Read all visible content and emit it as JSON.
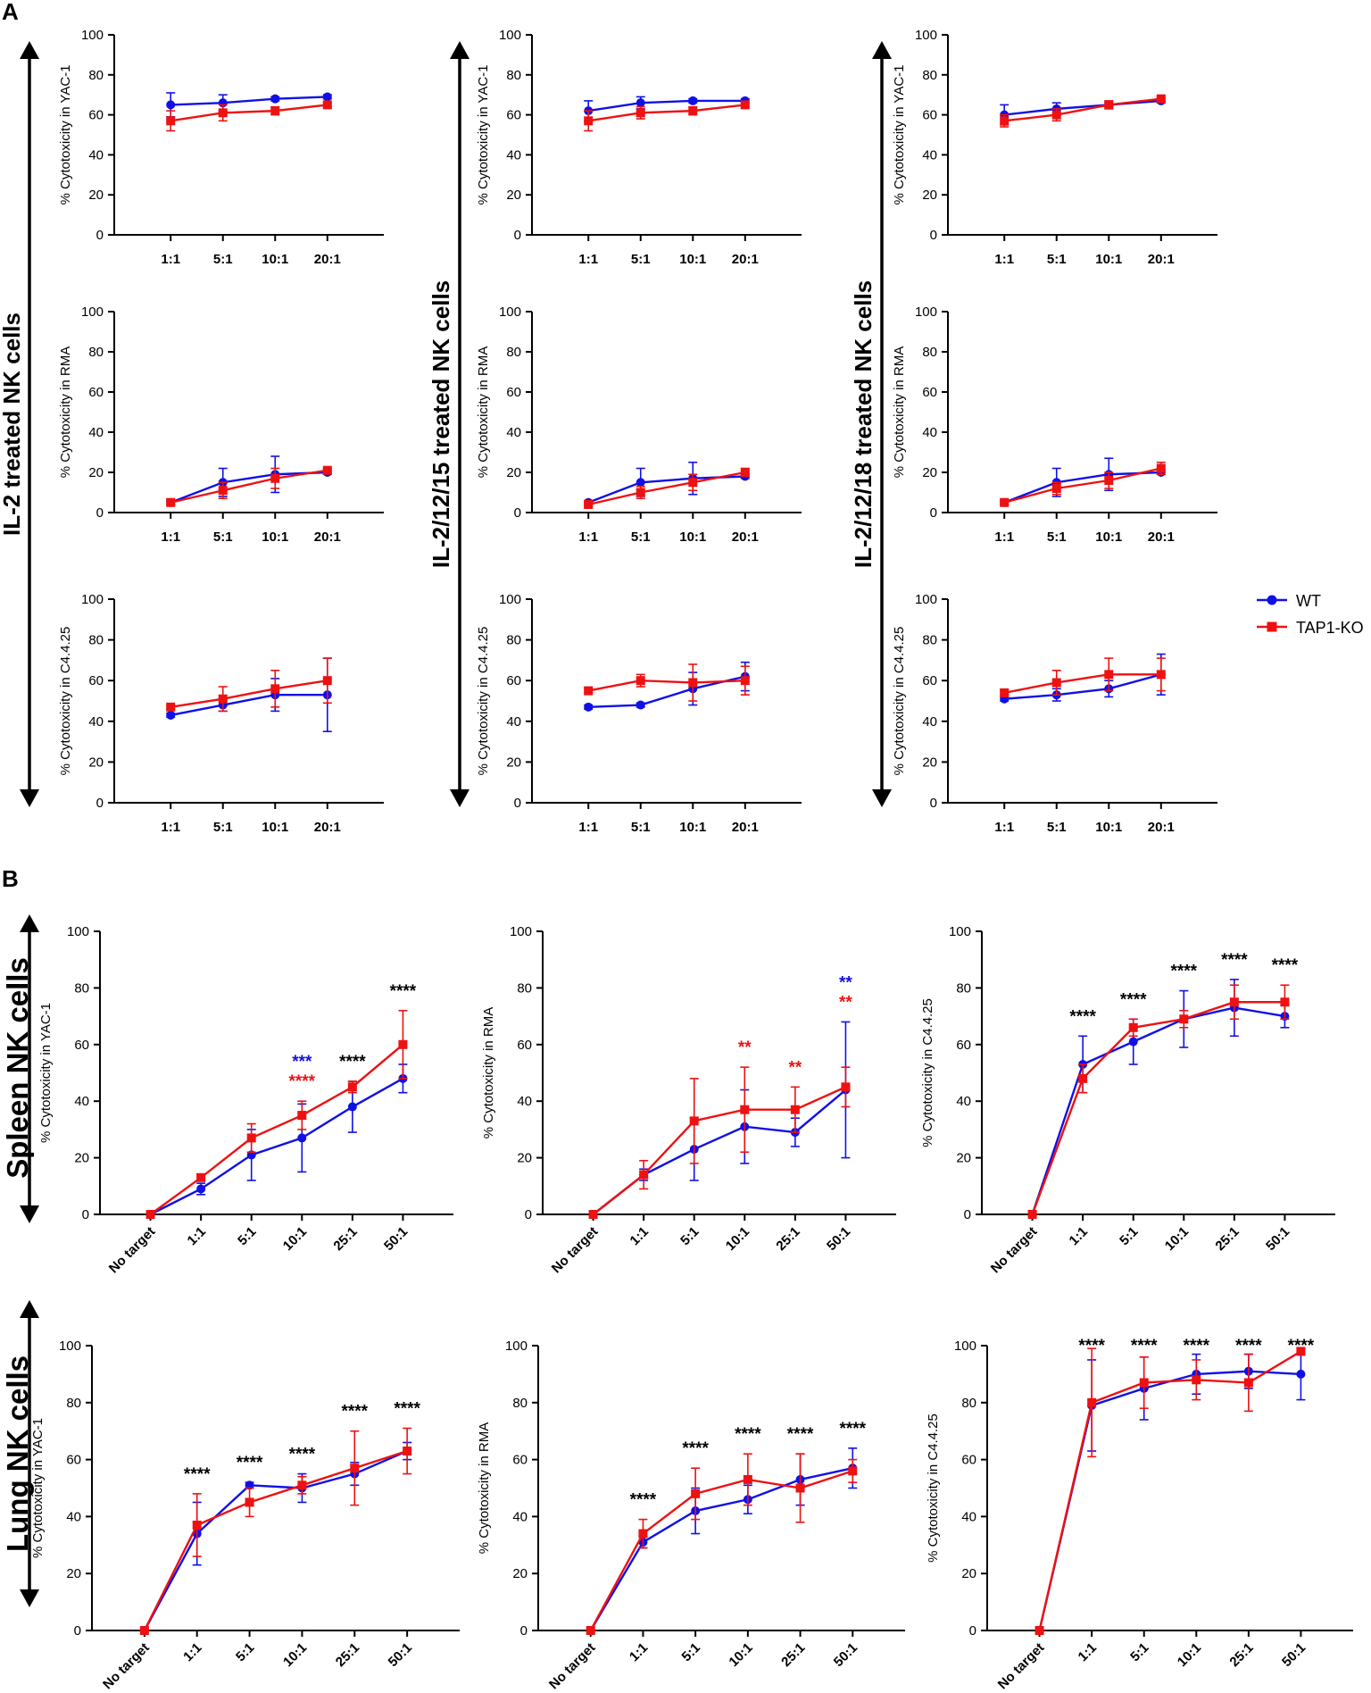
{
  "panels": {
    "a": "A",
    "b": "B"
  },
  "row_labels": {
    "il2": "IL-2 treated NK cells",
    "il21215": "IL-2/12/15 treated NK cells",
    "il21218": "IL-2/12/18 treated NK cells",
    "spleen": "Spleen NK cells",
    "lung": "Lung NK cells"
  },
  "legend": {
    "wt": "WT",
    "ko": "TAP1-KO"
  },
  "colors": {
    "wt": "#1010e6",
    "ko": "#ee1111",
    "axis": "#000000",
    "star_black": "#000000"
  },
  "chart_data": [
    {
      "id": "a11",
      "type": "line",
      "ylabel": "% Cytotoxicity in YAC-1",
      "categories": [
        "1:1",
        "5:1",
        "10:1",
        "20:1"
      ],
      "ylim": [
        0,
        100
      ],
      "yticks": [
        0,
        20,
        40,
        60,
        80,
        100
      ],
      "series": [
        {
          "name": "WT",
          "values": [
            65,
            66,
            68,
            69
          ],
          "err": [
            6,
            4,
            1,
            1
          ]
        },
        {
          "name": "TAP1-KO",
          "values": [
            57,
            61,
            62,
            65
          ],
          "err": [
            5,
            4,
            2,
            1
          ]
        }
      ],
      "annotations": []
    },
    {
      "id": "a12",
      "type": "line",
      "ylabel": "% Cytotoxicity in YAC-1",
      "categories": [
        "1:1",
        "5:1",
        "10:1",
        "20:1"
      ],
      "ylim": [
        0,
        100
      ],
      "yticks": [
        0,
        20,
        40,
        60,
        80,
        100
      ],
      "series": [
        {
          "name": "WT",
          "values": [
            62,
            66,
            67,
            67
          ],
          "err": [
            5,
            3,
            1,
            1
          ]
        },
        {
          "name": "TAP1-KO",
          "values": [
            57,
            61,
            62,
            65
          ],
          "err": [
            5,
            3,
            2,
            1
          ]
        }
      ],
      "annotations": []
    },
    {
      "id": "a13",
      "type": "line",
      "ylabel": "% Cytotoxicity in YAC-1",
      "categories": [
        "1:1",
        "5:1",
        "10:1",
        "20:1"
      ],
      "ylim": [
        0,
        100
      ],
      "yticks": [
        0,
        20,
        40,
        60,
        80,
        100
      ],
      "series": [
        {
          "name": "WT",
          "values": [
            60,
            63,
            65,
            67
          ],
          "err": [
            5,
            3,
            1,
            1
          ]
        },
        {
          "name": "TAP1-KO",
          "values": [
            57,
            60,
            65,
            68
          ],
          "err": [
            3,
            3,
            2,
            1
          ]
        }
      ],
      "annotations": []
    },
    {
      "id": "a21",
      "type": "line",
      "ylabel": "% Cytotoxicity in RMA",
      "categories": [
        "1:1",
        "5:1",
        "10:1",
        "20:1"
      ],
      "ylim": [
        0,
        100
      ],
      "yticks": [
        0,
        20,
        40,
        60,
        80,
        100
      ],
      "series": [
        {
          "name": "WT",
          "values": [
            5,
            15,
            19,
            20
          ],
          "err": [
            1,
            7,
            9,
            1
          ]
        },
        {
          "name": "TAP1-KO",
          "values": [
            5,
            11,
            17,
            21
          ],
          "err": [
            1,
            4,
            5,
            1
          ]
        }
      ],
      "annotations": []
    },
    {
      "id": "a22",
      "type": "line",
      "ylabel": "% Cytotoxicity in RMA",
      "categories": [
        "1:1",
        "5:1",
        "10:1",
        "20:1"
      ],
      "ylim": [
        0,
        100
      ],
      "yticks": [
        0,
        20,
        40,
        60,
        80,
        100
      ],
      "series": [
        {
          "name": "WT",
          "values": [
            5,
            15,
            17,
            18
          ],
          "err": [
            1,
            7,
            8,
            1
          ]
        },
        {
          "name": "TAP1-KO",
          "values": [
            4,
            10,
            15,
            20
          ],
          "err": [
            1,
            3,
            4,
            2
          ]
        }
      ],
      "annotations": []
    },
    {
      "id": "a23",
      "type": "line",
      "ylabel": "% Cytotoxicity in RMA",
      "categories": [
        "1:1",
        "5:1",
        "10:1",
        "20:1"
      ],
      "ylim": [
        0,
        100
      ],
      "yticks": [
        0,
        20,
        40,
        60,
        80,
        100
      ],
      "series": [
        {
          "name": "WT",
          "values": [
            5,
            15,
            19,
            20
          ],
          "err": [
            1,
            7,
            8,
            1
          ]
        },
        {
          "name": "TAP1-KO",
          "values": [
            5,
            12,
            16,
            22
          ],
          "err": [
            1,
            3,
            4,
            3
          ]
        }
      ],
      "annotations": []
    },
    {
      "id": "a31",
      "type": "line",
      "ylabel": "% Cytotoxicity in C4.4.25",
      "categories": [
        "1:1",
        "5:1",
        "10:1",
        "20:1"
      ],
      "ylim": [
        0,
        100
      ],
      "yticks": [
        0,
        20,
        40,
        60,
        80,
        100
      ],
      "series": [
        {
          "name": "WT",
          "values": [
            43,
            48,
            53,
            53
          ],
          "err": [
            1,
            3,
            8,
            18
          ]
        },
        {
          "name": "TAP1-KO",
          "values": [
            47,
            51,
            56,
            60
          ],
          "err": [
            1,
            6,
            9,
            11
          ]
        }
      ],
      "annotations": []
    },
    {
      "id": "a32",
      "type": "line",
      "ylabel": "% Cytotoxicity in C4.4.25",
      "categories": [
        "1:1",
        "5:1",
        "10:1",
        "20:1"
      ],
      "ylim": [
        0,
        100
      ],
      "yticks": [
        0,
        20,
        40,
        60,
        80,
        100
      ],
      "series": [
        {
          "name": "WT",
          "values": [
            47,
            48,
            56,
            62
          ],
          "err": [
            1,
            1,
            8,
            7
          ]
        },
        {
          "name": "TAP1-KO",
          "values": [
            55,
            60,
            59,
            60
          ],
          "err": [
            1,
            3,
            9,
            7
          ]
        }
      ],
      "annotations": []
    },
    {
      "id": "a33",
      "type": "line",
      "ylabel": "% Cytotoxicity in C4.4.25",
      "categories": [
        "1:1",
        "5:1",
        "10:1",
        "20:1"
      ],
      "ylim": [
        0,
        100
      ],
      "yticks": [
        0,
        20,
        40,
        60,
        80,
        100
      ],
      "series": [
        {
          "name": "WT",
          "values": [
            51,
            53,
            56,
            63
          ],
          "err": [
            1,
            3,
            4,
            10
          ]
        },
        {
          "name": "TAP1-KO",
          "values": [
            54,
            59,
            63,
            63
          ],
          "err": [
            1,
            6,
            8,
            8
          ]
        }
      ],
      "annotations": []
    },
    {
      "id": "b11",
      "type": "line",
      "ylabel": "% Cytotoxicity in YAC-1",
      "categories": [
        "No target",
        "1:1",
        "5:1",
        "10:1",
        "25:1",
        "50:1"
      ],
      "ylim": [
        0,
        100
      ],
      "yticks": [
        0,
        20,
        40,
        60,
        80,
        100
      ],
      "series": [
        {
          "name": "WT",
          "values": [
            0,
            9,
            21,
            27,
            38,
            48
          ],
          "err": [
            0,
            2,
            9,
            12,
            9,
            5
          ]
        },
        {
          "name": "TAP1-KO",
          "values": [
            0,
            13,
            27,
            35,
            45,
            60
          ],
          "err": [
            0,
            1,
            5,
            5,
            2,
            12
          ]
        }
      ],
      "annotations": [
        {
          "cat": 3,
          "lines": [
            {
              "text": "***",
              "color": "#1010e6"
            },
            {
              "text": "****",
              "color": "#ee1111"
            }
          ]
        },
        {
          "cat": 4,
          "lines": [
            {
              "text": "****",
              "color": "#000000"
            }
          ]
        },
        {
          "cat": 5,
          "lines": [
            {
              "text": "****",
              "color": "#000000"
            }
          ]
        }
      ]
    },
    {
      "id": "b12",
      "type": "line",
      "ylabel": "% Cytotoxicity in RMA",
      "categories": [
        "No target",
        "1:1",
        "5:1",
        "10:1",
        "25:1",
        "50:1"
      ],
      "ylim": [
        0,
        100
      ],
      "yticks": [
        0,
        20,
        40,
        60,
        80,
        100
      ],
      "series": [
        {
          "name": "WT",
          "values": [
            0,
            14,
            23,
            31,
            29,
            44
          ],
          "err": [
            0,
            2,
            11,
            13,
            5,
            24
          ]
        },
        {
          "name": "TAP1-KO",
          "values": [
            0,
            14,
            33,
            37,
            37,
            45
          ],
          "err": [
            0,
            5,
            15,
            15,
            8,
            7
          ]
        }
      ],
      "annotations": [
        {
          "cat": 3,
          "lines": [
            {
              "text": "**",
              "color": "#ee1111"
            }
          ]
        },
        {
          "cat": 4,
          "lines": [
            {
              "text": "**",
              "color": "#ee1111"
            }
          ]
        },
        {
          "cat": 5,
          "lines": [
            {
              "text": "**",
              "color": "#1010e6"
            },
            {
              "text": "**",
              "color": "#ee1111"
            }
          ]
        }
      ]
    },
    {
      "id": "b13",
      "type": "line",
      "ylabel": "% Cytotoxicity in C4.4.25",
      "categories": [
        "No target",
        "1:1",
        "5:1",
        "10:1",
        "25:1",
        "50:1"
      ],
      "ylim": [
        0,
        100
      ],
      "yticks": [
        0,
        20,
        40,
        60,
        80,
        100
      ],
      "series": [
        {
          "name": "WT",
          "values": [
            0,
            53,
            61,
            69,
            73,
            70
          ],
          "err": [
            0,
            10,
            8,
            10,
            10,
            4
          ]
        },
        {
          "name": "TAP1-KO",
          "values": [
            0,
            48,
            66,
            69,
            75,
            75
          ],
          "err": [
            0,
            5,
            3,
            3,
            6,
            6
          ]
        }
      ],
      "annotations": [
        {
          "cat": 1,
          "lines": [
            {
              "text": "****",
              "color": "#000000"
            }
          ]
        },
        {
          "cat": 2,
          "lines": [
            {
              "text": "****",
              "color": "#000000"
            }
          ]
        },
        {
          "cat": 3,
          "lines": [
            {
              "text": "****",
              "color": "#000000"
            }
          ]
        },
        {
          "cat": 4,
          "lines": [
            {
              "text": "****",
              "color": "#000000"
            }
          ]
        },
        {
          "cat": 5,
          "lines": [
            {
              "text": "****",
              "color": "#000000"
            }
          ]
        }
      ]
    },
    {
      "id": "b21",
      "type": "line",
      "ylabel": "% Cytotoxicity in YAC-1",
      "categories": [
        "No target",
        "1:1",
        "5:1",
        "10:1",
        "25:1",
        "50:1"
      ],
      "ylim": [
        0,
        100
      ],
      "yticks": [
        0,
        20,
        40,
        60,
        80,
        100
      ],
      "series": [
        {
          "name": "WT",
          "values": [
            0,
            34,
            51,
            50,
            55,
            63
          ],
          "err": [
            0,
            11,
            1,
            5,
            4,
            3
          ]
        },
        {
          "name": "TAP1-KO",
          "values": [
            0,
            37,
            45,
            51,
            57,
            63
          ],
          "err": [
            0,
            11,
            5,
            3,
            13,
            8
          ]
        }
      ],
      "annotations": [
        {
          "cat": 1,
          "lines": [
            {
              "text": "****",
              "color": "#000000"
            }
          ]
        },
        {
          "cat": 2,
          "lines": [
            {
              "text": "****",
              "color": "#000000"
            }
          ]
        },
        {
          "cat": 3,
          "lines": [
            {
              "text": "****",
              "color": "#000000"
            }
          ]
        },
        {
          "cat": 4,
          "lines": [
            {
              "text": "****",
              "color": "#000000"
            }
          ]
        },
        {
          "cat": 5,
          "lines": [
            {
              "text": "****",
              "color": "#000000"
            }
          ]
        }
      ]
    },
    {
      "id": "b22",
      "type": "line",
      "ylabel": "% Cytotoxicity in RMA",
      "categories": [
        "No target",
        "1:1",
        "5:1",
        "10:1",
        "25:1",
        "50:1"
      ],
      "ylim": [
        0,
        100
      ],
      "yticks": [
        0,
        20,
        40,
        60,
        80,
        100
      ],
      "series": [
        {
          "name": "WT",
          "values": [
            0,
            31,
            42,
            46,
            53,
            57
          ],
          "err": [
            0,
            2,
            8,
            5,
            9,
            7
          ]
        },
        {
          "name": "TAP1-KO",
          "values": [
            0,
            34,
            48,
            53,
            50,
            56
          ],
          "err": [
            0,
            5,
            9,
            9,
            12,
            4
          ]
        }
      ],
      "annotations": [
        {
          "cat": 1,
          "lines": [
            {
              "text": "****",
              "color": "#000000"
            }
          ]
        },
        {
          "cat": 2,
          "lines": [
            {
              "text": "****",
              "color": "#000000"
            }
          ]
        },
        {
          "cat": 3,
          "lines": [
            {
              "text": "****",
              "color": "#000000"
            }
          ]
        },
        {
          "cat": 4,
          "lines": [
            {
              "text": "****",
              "color": "#000000"
            }
          ]
        },
        {
          "cat": 5,
          "lines": [
            {
              "text": "****",
              "color": "#000000"
            }
          ]
        }
      ]
    },
    {
      "id": "b23",
      "type": "line",
      "ylabel": "% Cytotoxicity in C4.4.25",
      "categories": [
        "No target",
        "1:1",
        "5:1",
        "10:1",
        "25:1",
        "50:1"
      ],
      "ylim": [
        0,
        100
      ],
      "yticks": [
        0,
        20,
        40,
        60,
        80,
        100
      ],
      "series": [
        {
          "name": "WT",
          "values": [
            0,
            79,
            85,
            90,
            91,
            90
          ],
          "err": [
            0,
            16,
            11,
            7,
            6,
            9
          ]
        },
        {
          "name": "TAP1-KO",
          "values": [
            0,
            80,
            87,
            88,
            87,
            98
          ],
          "err": [
            0,
            19,
            9,
            7,
            10,
            1
          ]
        }
      ],
      "annotations": [
        {
          "cat": 1,
          "lines": [
            {
              "text": "****",
              "color": "#000000"
            }
          ]
        },
        {
          "cat": 2,
          "lines": [
            {
              "text": "****",
              "color": "#000000"
            }
          ]
        },
        {
          "cat": 3,
          "lines": [
            {
              "text": "****",
              "color": "#000000"
            }
          ]
        },
        {
          "cat": 4,
          "lines": [
            {
              "text": "****",
              "color": "#000000"
            }
          ]
        },
        {
          "cat": 5,
          "lines": [
            {
              "text": "****",
              "color": "#000000"
            }
          ]
        }
      ]
    }
  ]
}
